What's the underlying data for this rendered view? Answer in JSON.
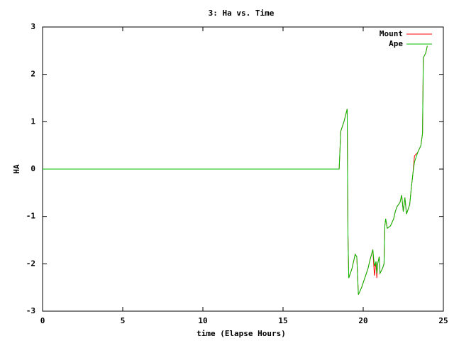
{
  "chart_data": {
    "type": "line",
    "title": "3: Ha vs. Time",
    "xlabel": "time (Elapse Hours)",
    "ylabel": "HA",
    "x": [
      0,
      18.5,
      18.6,
      18.8,
      19.0,
      19.05,
      19.1,
      19.3,
      19.5,
      19.6,
      19.7,
      19.9,
      20.1,
      20.3,
      20.4,
      20.6,
      20.7,
      20.8,
      20.85,
      20.9,
      21.0,
      21.05,
      21.2,
      21.3,
      21.35,
      21.4,
      21.5,
      21.7,
      21.9,
      22.0,
      22.1,
      22.3,
      22.4,
      22.5,
      22.6,
      22.7,
      22.8,
      22.9,
      23.0,
      23.1,
      23.2,
      23.4,
      23.6,
      23.7,
      23.75,
      23.9,
      24.0
    ],
    "series": [
      {
        "name": "Mount",
        "color": "#ff0000",
        "values": [
          0,
          0,
          0.8,
          1.0,
          1.27,
          -1.4,
          -2.3,
          -2.1,
          -1.8,
          -1.85,
          -2.65,
          -2.5,
          -2.3,
          -2.1,
          -1.95,
          -1.7,
          -2.25,
          -1.95,
          -2.3,
          -2.0,
          -1.85,
          -2.2,
          -2.1,
          -2.0,
          -1.2,
          -1.05,
          -1.25,
          -1.2,
          -1.05,
          -0.9,
          -0.8,
          -0.7,
          -0.55,
          -0.9,
          -0.6,
          -0.95,
          -0.85,
          -0.75,
          -0.4,
          -0.1,
          0.28,
          0.35,
          0.5,
          0.75,
          2.35,
          2.45,
          2.6
        ]
      },
      {
        "name": "Ape",
        "color": "#00c000",
        "values": [
          0,
          0,
          0.8,
          1.0,
          1.27,
          -1.4,
          -2.3,
          -2.1,
          -1.8,
          -1.85,
          -2.65,
          -2.5,
          -2.3,
          -2.1,
          -1.95,
          -1.7,
          -2.05,
          -1.95,
          -2.2,
          -2.0,
          -1.85,
          -2.2,
          -2.1,
          -2.0,
          -1.2,
          -1.05,
          -1.25,
          -1.2,
          -1.05,
          -0.9,
          -0.8,
          -0.7,
          -0.55,
          -0.9,
          -0.6,
          -0.95,
          -0.85,
          -0.75,
          -0.4,
          -0.1,
          0.15,
          0.35,
          0.5,
          0.75,
          2.35,
          2.45,
          2.6
        ]
      }
    ],
    "xlim": [
      0,
      25
    ],
    "xticks": [
      0,
      5,
      10,
      15,
      20,
      25
    ],
    "ylim": [
      -3,
      3
    ],
    "yticks": [
      -3,
      -2,
      -1,
      0,
      1,
      2,
      3
    ]
  }
}
